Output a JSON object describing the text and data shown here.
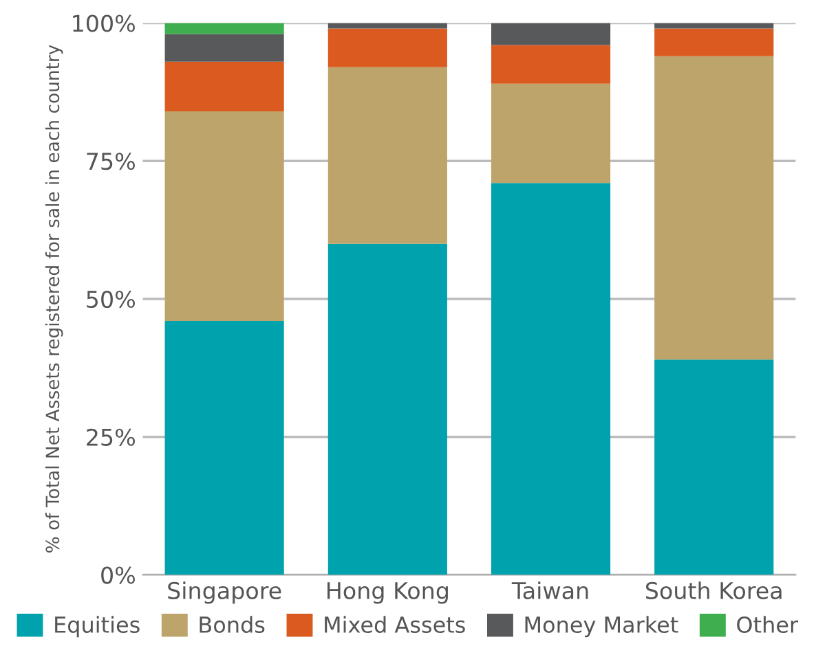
{
  "chart_data": {
    "type": "bar",
    "stacked": true,
    "ylabel": "% of Total Net Assets registered for sale in each country",
    "categories": [
      "Singapore",
      "Hong Kong",
      "Taiwan",
      "South Korea"
    ],
    "series": [
      {
        "name": "Equities",
        "color": "#00a3ad",
        "values": [
          46,
          60,
          71,
          39
        ]
      },
      {
        "name": "Bonds",
        "color": "#bda46a",
        "values": [
          38,
          32,
          18,
          55
        ]
      },
      {
        "name": "Mixed Assets",
        "color": "#db5a20",
        "values": [
          9,
          7,
          7,
          5
        ]
      },
      {
        "name": "Money Market",
        "color": "#58595b",
        "values": [
          5,
          1,
          4,
          1
        ]
      },
      {
        "name": "Other",
        "color": "#3eae4e",
        "values": [
          2,
          0,
          0,
          0
        ]
      }
    ],
    "ylim": [
      0,
      100
    ],
    "yticks": [
      {
        "value": 0,
        "label": "0%"
      },
      {
        "value": 25,
        "label": "25%"
      },
      {
        "value": 50,
        "label": "50%"
      },
      {
        "value": 75,
        "label": "75%"
      },
      {
        "value": 100,
        "label": "100%"
      }
    ],
    "grid": "y",
    "legend": "bottom"
  }
}
